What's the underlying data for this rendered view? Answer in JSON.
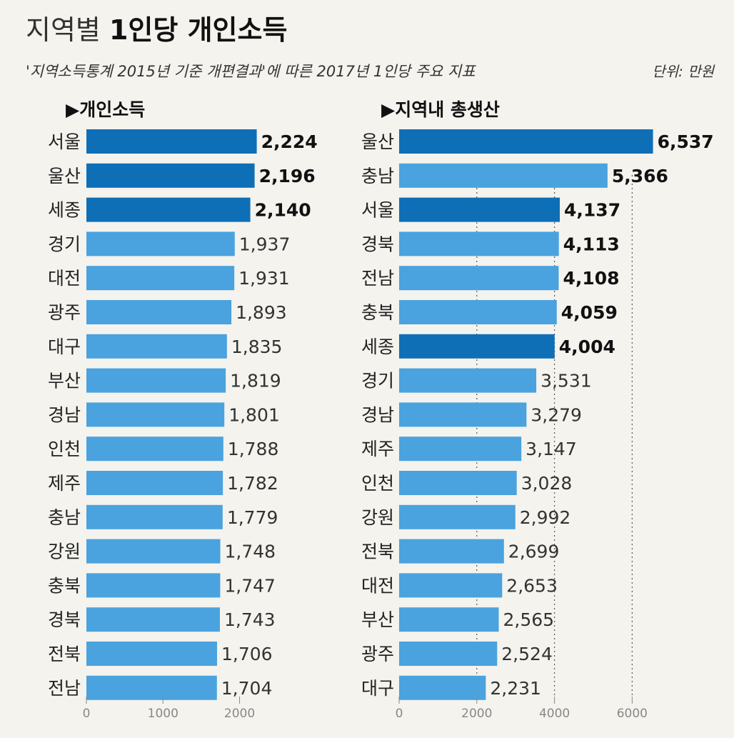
{
  "title_light": "지역별",
  "title_bold": "1인당 개인소득",
  "subtitle": "'지역소득통계 2015년 기준 개편결과'에 따른 2017년 1인당 주요 지표",
  "unit_label": "단위: 만원",
  "colors": {
    "highlight": "#0e6fb7",
    "normal": "#4aa3de",
    "background": "#f4f3ee"
  },
  "chart_data": [
    {
      "type": "bar",
      "orientation": "horizontal",
      "title": "▶개인소득",
      "categories": [
        "서울",
        "울산",
        "세종",
        "경기",
        "대전",
        "광주",
        "대구",
        "부산",
        "경남",
        "인천",
        "제주",
        "충남",
        "강원",
        "충북",
        "경북",
        "전북",
        "전남"
      ],
      "values": [
        2224,
        2196,
        2140,
        1937,
        1931,
        1893,
        1835,
        1819,
        1801,
        1788,
        1782,
        1779,
        1748,
        1747,
        1743,
        1706,
        1704
      ],
      "value_labels": [
        "2,224",
        "2,196",
        "2,140",
        "1,937",
        "1,931",
        "1,893",
        "1,835",
        "1,819",
        "1,801",
        "1,788",
        "1,782",
        "1,779",
        "1,748",
        "1,747",
        "1,743",
        "1,706",
        "1,704"
      ],
      "highlight": [
        true,
        true,
        true,
        false,
        false,
        false,
        false,
        false,
        false,
        false,
        false,
        false,
        false,
        false,
        false,
        false,
        false
      ],
      "bold_labels": [
        true,
        true,
        true,
        false,
        false,
        false,
        false,
        false,
        false,
        false,
        false,
        false,
        false,
        false,
        false,
        false,
        false
      ],
      "xlim": [
        0,
        2200
      ],
      "xticks": [
        0,
        1000,
        2000
      ],
      "xtick_labels": [
        "0",
        "1000",
        "2000"
      ],
      "grid": false
    },
    {
      "type": "bar",
      "orientation": "horizontal",
      "title": "▶지역내 총생산",
      "categories": [
        "울산",
        "충남",
        "서울",
        "경북",
        "전남",
        "충북",
        "세종",
        "경기",
        "경남",
        "제주",
        "인천",
        "강원",
        "전북",
        "대전",
        "부산",
        "광주",
        "대구"
      ],
      "values": [
        6537,
        5366,
        4137,
        4113,
        4108,
        4059,
        4004,
        3531,
        3279,
        3147,
        3028,
        2992,
        2699,
        2653,
        2565,
        2524,
        2231
      ],
      "value_labels": [
        "6,537",
        "5,366",
        "4,137",
        "4,113",
        "4,108",
        "4,059",
        "4,004",
        "3,531",
        "3,279",
        "3,147",
        "3,028",
        "2,992",
        "2,699",
        "2,653",
        "2,565",
        "2,524",
        "2,231"
      ],
      "highlight": [
        true,
        false,
        true,
        false,
        false,
        false,
        true,
        false,
        false,
        false,
        false,
        false,
        false,
        false,
        false,
        false,
        false
      ],
      "bold_labels": [
        true,
        true,
        true,
        true,
        true,
        true,
        true,
        false,
        false,
        false,
        false,
        false,
        false,
        false,
        false,
        false,
        false
      ],
      "xlim": [
        0,
        6600
      ],
      "xticks": [
        0,
        2000,
        4000,
        6000
      ],
      "xtick_labels": [
        "0",
        "2000",
        "4000",
        "6000"
      ],
      "grid": true
    }
  ]
}
